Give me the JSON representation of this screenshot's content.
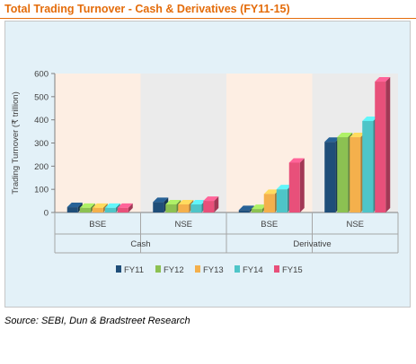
{
  "title": "Total Trading Turnover - Cash & Derivatives (FY11-15)",
  "source": "Source: SEBI, Dun & Bradstreet Research",
  "colors": {
    "title": "#e46c0a",
    "panel_light": "#fdeee3",
    "panel_grey": "#ebebeb",
    "background": "#e3f1f8",
    "series": [
      "#1f4e79",
      "#8cc152",
      "#f4b04c",
      "#4ec5c8",
      "#e8507a"
    ]
  },
  "chart_data": {
    "type": "bar",
    "ylabel": "Trading Turnover (₹ trillion)",
    "xlabel": "",
    "ylim": [
      0,
      600
    ],
    "yticks": [
      0,
      100,
      200,
      300,
      400,
      500,
      600
    ],
    "grid": false,
    "legend": "bottom",
    "categories": [
      "BSE",
      "NSE",
      "BSE",
      "NSE"
    ],
    "groups": [
      {
        "label": "Cash",
        "categories": [
          "BSE",
          "NSE"
        ]
      },
      {
        "label": "Derivative",
        "categories": [
          "BSE",
          "NSE"
        ]
      }
    ],
    "series": [
      {
        "name": "FY11",
        "values": [
          23,
          45,
          10,
          305
        ]
      },
      {
        "name": "FY12",
        "values": [
          20,
          35,
          15,
          325
        ]
      },
      {
        "name": "FY13",
        "values": [
          20,
          35,
          80,
          325
        ]
      },
      {
        "name": "FY14",
        "values": [
          20,
          35,
          100,
          395
        ]
      },
      {
        "name": "FY15",
        "values": [
          20,
          50,
          215,
          565
        ]
      }
    ]
  }
}
